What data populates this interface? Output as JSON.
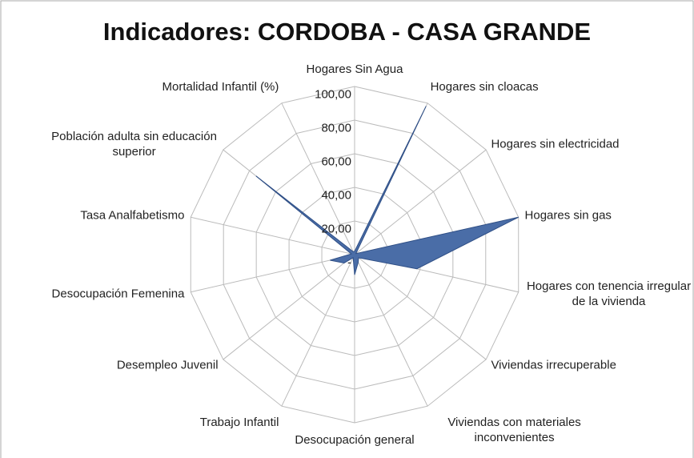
{
  "chart_data": {
    "type": "radar",
    "title": "Indicadores: CORDOBA - CASA GRANDE",
    "categories": [
      "Hogares Sin Agua",
      "Hogares sin cloacas",
      "Hogares sin electricidad",
      "Hogares sin gas",
      "Hogares con tenencia irregular de la vivienda",
      "Viviendas irrecuperable",
      "Viviendas con materiales inconvenientes",
      "Desocupación general",
      "Trabajo Infantil",
      "Desempleo Juvenil",
      "Desocupación Femenina",
      "Tasa Analfabetismo",
      "Población adulta  sin educación superior",
      "Mortalidad Infantil (%)"
    ],
    "values": [
      2,
      98,
      1,
      100,
      38,
      3,
      5,
      12,
      2,
      8,
      15,
      2,
      75,
      2
    ],
    "color": "#4a6da7",
    "ylim": [
      0,
      100
    ],
    "yticks": [
      {
        "value": 0,
        "label": "-"
      },
      {
        "value": 20,
        "label": "20,00"
      },
      {
        "value": 40,
        "label": "40,00"
      },
      {
        "value": 60,
        "label": "60,00"
      },
      {
        "value": 80,
        "label": "80,00"
      },
      {
        "value": 100,
        "label": "100,00"
      }
    ]
  }
}
